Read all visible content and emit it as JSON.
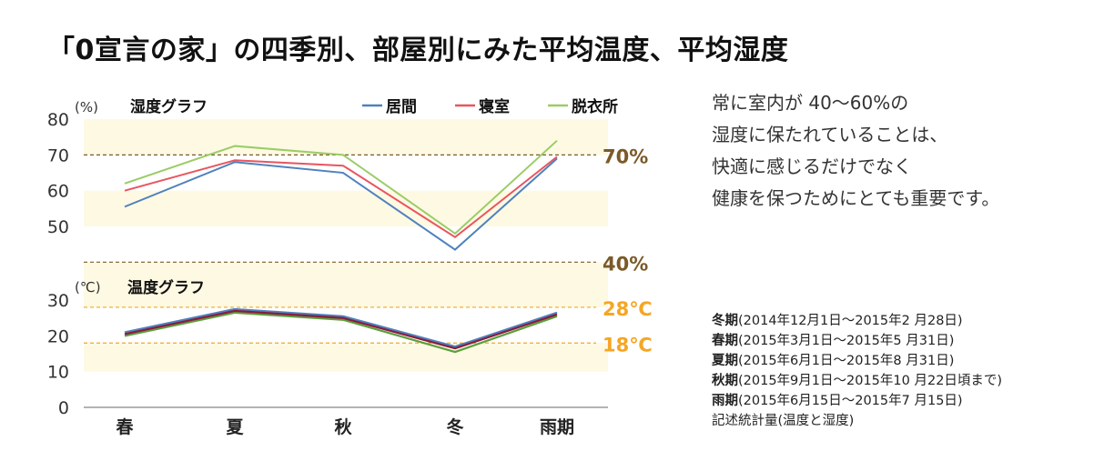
{
  "title": "「0宣言の家」の四季別、部屋別にみた平均温度、平均湿度",
  "description_lines": [
    "常に室内が 40〜60%の",
    "湿度に保たれていることは、",
    "快適に感じるだけでなく",
    "健康を保つためにとても重要です。"
  ],
  "periods": [
    {
      "season": "冬期",
      "range": "(2014年12月1日〜2015年2 月28日)"
    },
    {
      "season": "春期",
      "range": "(2015年3月1日〜2015年5 月31日)"
    },
    {
      "season": "夏期",
      "range": "(2015年6月1日〜2015年8 月31日)"
    },
    {
      "season": "秋期",
      "range": "(2015年9月1日〜2015年10 月22日頃まで)"
    },
    {
      "season": "雨期",
      "range": "(2015年6月15日〜2015年7 月15日)"
    }
  ],
  "stats_note": "記述統計量(温度と湿度)",
  "colors": {
    "living": "#4f81bd",
    "bedroom": "#e8555f",
    "dressing": "#9bcc66",
    "bedroom_temp": "#8b1a3c",
    "band": "#fdf9e3",
    "ref_brown": "#7a5a28",
    "ref_orange": "#f5a623"
  },
  "chart_data": [
    {
      "type": "line",
      "title": "湿度グラフ",
      "unit": "(%)",
      "categories": [
        "春",
        "夏",
        "秋",
        "冬",
        "雨期"
      ],
      "ylim": [
        50,
        80
      ],
      "yticks": [
        80,
        70,
        60,
        50
      ],
      "legend": "top-right",
      "series": [
        {
          "name": "居間",
          "values": [
            55.5,
            68,
            65,
            43.5,
            69
          ]
        },
        {
          "name": "寝室",
          "values": [
            60,
            68.5,
            67,
            47,
            69.5
          ]
        },
        {
          "name": "脱衣所",
          "values": [
            62,
            72.5,
            70,
            48,
            74
          ]
        }
      ],
      "reference_lines": [
        {
          "value": 70,
          "label": "70%"
        },
        {
          "value": 40,
          "label": "40%"
        }
      ]
    },
    {
      "type": "line",
      "title": "温度グラフ",
      "unit": "(℃)",
      "categories": [
        "春",
        "夏",
        "秋",
        "冬",
        "雨期"
      ],
      "ylim": [
        0,
        30
      ],
      "yticks": [
        30,
        20,
        10,
        0
      ],
      "series": [
        {
          "name": "居間",
          "values": [
            21,
            27.5,
            25.5,
            17,
            26.5
          ]
        },
        {
          "name": "寝室",
          "values": [
            20.5,
            27,
            25,
            16.5,
            26
          ]
        },
        {
          "name": "脱衣所",
          "values": [
            20,
            26.5,
            24.5,
            15.5,
            25.5
          ]
        }
      ],
      "reference_lines": [
        {
          "value": 28,
          "label": "28℃"
        },
        {
          "value": 18,
          "label": "18℃"
        }
      ]
    }
  ]
}
